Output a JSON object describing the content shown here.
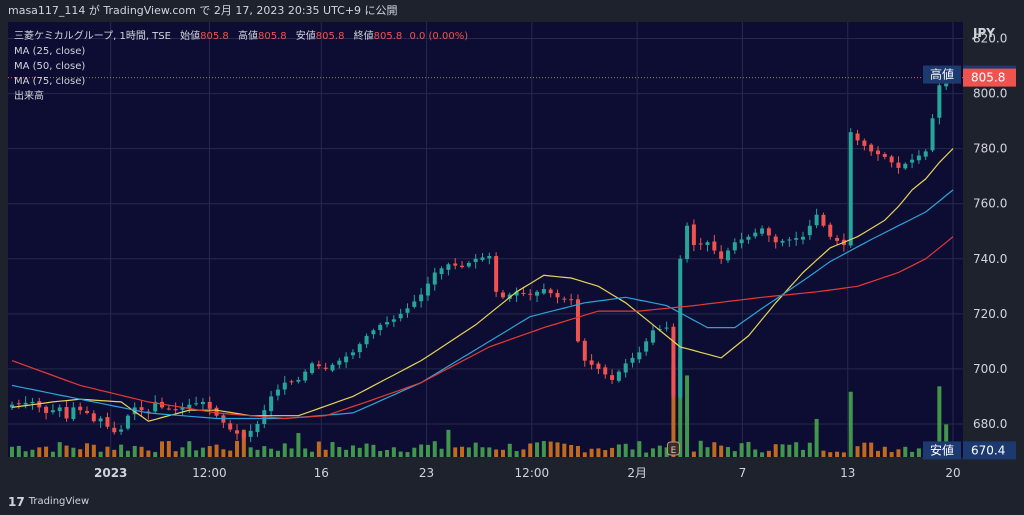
{
  "header": {
    "published_by": "masa117_114 が TradingView.com で 2月 17, 2023 20:35 UTC+9 に公開"
  },
  "legend": {
    "symbol": "三菱ケミカルグループ, 1時間, TSE",
    "open_label": "始値",
    "open": "805.8",
    "high_label": "高値",
    "high": "805.8",
    "low_label": "安値",
    "low": "805.8",
    "close_label": "終値",
    "close": "805.8",
    "change": "0.0 (0.00%)",
    "ma25": "MA (25, close)",
    "ma50": "MA (50, close)",
    "ma75": "MA (75, close)",
    "volume": "出来高"
  },
  "footer": {
    "brand": "TradingView"
  },
  "colors": {
    "background": "#0d0d33",
    "up": "#26a69a",
    "down": "#ef5350",
    "ma25": "#e6d35a",
    "ma50": "#2ba3d6",
    "ma75": "#e53935",
    "vol_up": "#4caf50",
    "vol_down": "#e07b1a",
    "axis_bg": "#1e222d",
    "text": "#d1d4dc"
  },
  "chart_data": {
    "type": "candlestick",
    "interval": "1時間",
    "currency": "JPY",
    "y_ticks": [
      820,
      800,
      780,
      760,
      740,
      720,
      700,
      680
    ],
    "ylim": [
      668,
      826
    ],
    "x_ticks": [
      "2023",
      "12:00",
      "16",
      "23",
      "12:00",
      "2月",
      "7",
      "13",
      "20"
    ],
    "price_labels": {
      "high_label": "高値",
      "high": 806.9,
      "last": 805.8,
      "low_label": "安値",
      "low": 670.4
    },
    "event_marker": "E",
    "price_anchors": [
      [
        0,
        687
      ],
      [
        3,
        688
      ],
      [
        5,
        684
      ],
      [
        7,
        686
      ],
      [
        8,
        682
      ],
      [
        9,
        686
      ],
      [
        11,
        684
      ],
      [
        12,
        681
      ],
      [
        13,
        682
      ],
      [
        14,
        679
      ],
      [
        15,
        677
      ],
      [
        16,
        678
      ],
      [
        17,
        683
      ],
      [
        18,
        686
      ],
      [
        20,
        684
      ],
      [
        21,
        688
      ],
      [
        22,
        686
      ],
      [
        24,
        685
      ],
      [
        26,
        687
      ],
      [
        28,
        688
      ],
      [
        30,
        683
      ],
      [
        32,
        678
      ],
      [
        34,
        675
      ],
      [
        36,
        680
      ],
      [
        38,
        690
      ],
      [
        40,
        695
      ],
      [
        42,
        696
      ],
      [
        44,
        702
      ],
      [
        46,
        700
      ],
      [
        48,
        703
      ],
      [
        50,
        706
      ],
      [
        52,
        712
      ],
      [
        54,
        716
      ],
      [
        56,
        718
      ],
      [
        58,
        722
      ],
      [
        60,
        727
      ],
      [
        62,
        735
      ],
      [
        64,
        738
      ],
      [
        66,
        737
      ],
      [
        68,
        740
      ],
      [
        70,
        741
      ],
      [
        71,
        728
      ],
      [
        72,
        726
      ],
      [
        74,
        728
      ],
      [
        76,
        727
      ],
      [
        78,
        729
      ],
      [
        80,
        726
      ],
      [
        82,
        725
      ],
      [
        83,
        710
      ],
      [
        84,
        703
      ],
      [
        86,
        700
      ],
      [
        88,
        696
      ],
      [
        90,
        702
      ],
      [
        92,
        706
      ],
      [
        94,
        714
      ],
      [
        96,
        715
      ],
      [
        97,
        690
      ],
      [
        98,
        740
      ],
      [
        99,
        752
      ],
      [
        100,
        745
      ],
      [
        102,
        746
      ],
      [
        104,
        740
      ],
      [
        106,
        746
      ],
      [
        108,
        748
      ],
      [
        110,
        751
      ],
      [
        112,
        746
      ],
      [
        114,
        747
      ],
      [
        116,
        748
      ],
      [
        118,
        756
      ],
      [
        120,
        748
      ],
      [
        122,
        745
      ],
      [
        123,
        786
      ],
      [
        124,
        783
      ],
      [
        126,
        779
      ],
      [
        128,
        777
      ],
      [
        130,
        773
      ],
      [
        132,
        776
      ],
      [
        134,
        779
      ],
      [
        135,
        791
      ],
      [
        136,
        803
      ],
      [
        137,
        806
      ],
      [
        138,
        805.8
      ]
    ],
    "ma25_anchors": [
      [
        0,
        686
      ],
      [
        6,
        688
      ],
      [
        10,
        689
      ],
      [
        16,
        688
      ],
      [
        20,
        681
      ],
      [
        26,
        685
      ],
      [
        30,
        685
      ],
      [
        35,
        683
      ],
      [
        42,
        683
      ],
      [
        50,
        690
      ],
      [
        60,
        703
      ],
      [
        68,
        716
      ],
      [
        74,
        728
      ],
      [
        78,
        734
      ],
      [
        82,
        733
      ],
      [
        86,
        730
      ],
      [
        90,
        724
      ],
      [
        94,
        716
      ],
      [
        98,
        708
      ],
      [
        104,
        704
      ],
      [
        108,
        712
      ],
      [
        112,
        724
      ],
      [
        116,
        735
      ],
      [
        120,
        744
      ],
      [
        124,
        748
      ],
      [
        126,
        751
      ],
      [
        128,
        754
      ],
      [
        130,
        759
      ],
      [
        132,
        765
      ],
      [
        134,
        769
      ],
      [
        136,
        775
      ],
      [
        138,
        780
      ]
    ],
    "ma50_anchors": [
      [
        0,
        694
      ],
      [
        10,
        689
      ],
      [
        20,
        684
      ],
      [
        30,
        682
      ],
      [
        40,
        682
      ],
      [
        50,
        684
      ],
      [
        60,
        695
      ],
      [
        68,
        707
      ],
      [
        76,
        719
      ],
      [
        84,
        724
      ],
      [
        90,
        726
      ],
      [
        96,
        723
      ],
      [
        102,
        715
      ],
      [
        106,
        715
      ],
      [
        110,
        722
      ],
      [
        116,
        732
      ],
      [
        120,
        739
      ],
      [
        126,
        747
      ],
      [
        130,
        752
      ],
      [
        134,
        757
      ],
      [
        138,
        765
      ]
    ],
    "ma75_anchors": [
      [
        0,
        703
      ],
      [
        10,
        694
      ],
      [
        20,
        688
      ],
      [
        30,
        684
      ],
      [
        40,
        682
      ],
      [
        46,
        683
      ],
      [
        52,
        688
      ],
      [
        60,
        695
      ],
      [
        70,
        708
      ],
      [
        78,
        715
      ],
      [
        86,
        721
      ],
      [
        92,
        721
      ],
      [
        100,
        723
      ],
      [
        110,
        726
      ],
      [
        118,
        728
      ],
      [
        124,
        730
      ],
      [
        130,
        735
      ],
      [
        134,
        740
      ],
      [
        138,
        748
      ]
    ]
  }
}
